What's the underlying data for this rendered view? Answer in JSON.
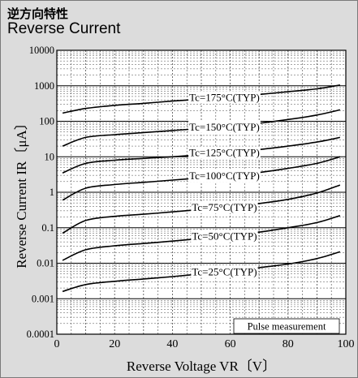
{
  "header": {
    "title_jp": "逆方向特性",
    "title_en": "Reverse Current"
  },
  "chart_data": {
    "type": "line",
    "title": "Reverse Current",
    "xlabel": "Reverse Voltage  VR〔V〕",
    "ylabel": "Reverse Current  IR〔μA〕",
    "xlim": [
      0,
      100
    ],
    "ylim": [
      0.0001,
      10000
    ],
    "yscale": "log",
    "grid": true,
    "x_ticks": [
      0,
      20,
      40,
      60,
      80,
      100
    ],
    "x_tick_labels": [
      "0",
      "20",
      "40",
      "60",
      "80",
      "100"
    ],
    "y_ticks": [
      0.0001,
      0.001,
      0.01,
      0.1,
      1,
      10,
      100,
      1000,
      10000
    ],
    "y_tick_labels": [
      "0.0001",
      "0.001",
      "0.01",
      "0.1",
      "1",
      "10",
      "100",
      "1000",
      "10000"
    ],
    "annotation": "Pulse measurement",
    "series": [
      {
        "name": "Tc=175°C(TYP)",
        "x": [
          2,
          10,
          20,
          30,
          40,
          50,
          60,
          70,
          80,
          90,
          98
        ],
        "y": [
          170,
          230,
          280,
          320,
          370,
          420,
          490,
          570,
          680,
          820,
          1050
        ]
      },
      {
        "name": "Tc=150°C(TYP)",
        "x": [
          2,
          10,
          20,
          30,
          40,
          50,
          60,
          70,
          80,
          90,
          98
        ],
        "y": [
          20,
          35,
          42,
          48,
          55,
          62,
          72,
          88,
          112,
          150,
          210
        ]
      },
      {
        "name": "Tc=125°C(TYP)",
        "x": [
          2,
          10,
          20,
          30,
          40,
          50,
          60,
          70,
          80,
          90,
          98
        ],
        "y": [
          3.5,
          6.5,
          8,
          9,
          10,
          11.5,
          13.5,
          16,
          20,
          26,
          35
        ]
      },
      {
        "name": "Tc=100°C(TYP)",
        "x": [
          2,
          10,
          20,
          30,
          40,
          50,
          60,
          70,
          80,
          90,
          98
        ],
        "y": [
          0.6,
          1.3,
          1.65,
          1.9,
          2.2,
          2.55,
          3.0,
          3.6,
          4.7,
          6.5,
          10
        ]
      },
      {
        "name": "Tc=75°C(TYP)",
        "x": [
          2,
          10,
          20,
          30,
          40,
          50,
          60,
          70,
          80,
          90,
          98
        ],
        "y": [
          0.07,
          0.16,
          0.21,
          0.24,
          0.28,
          0.33,
          0.39,
          0.48,
          0.63,
          0.95,
          1.6
        ]
      },
      {
        "name": "Tc=50°C(TYP)",
        "x": [
          2,
          10,
          20,
          30,
          40,
          50,
          60,
          70,
          80,
          90,
          98
        ],
        "y": [
          0.012,
          0.024,
          0.031,
          0.036,
          0.042,
          0.05,
          0.06,
          0.075,
          0.1,
          0.14,
          0.22
        ]
      },
      {
        "name": "Tc=25°C(TYP)",
        "x": [
          2,
          10,
          20,
          30,
          40,
          50,
          60,
          70,
          80,
          90,
          98
        ],
        "y": [
          0.0016,
          0.0025,
          0.0031,
          0.0036,
          0.0042,
          0.005,
          0.006,
          0.0075,
          0.0095,
          0.0135,
          0.021
        ]
      }
    ],
    "label_x": 58,
    "colors": {
      "line": "#000000",
      "grid": "#4a4a4a",
      "plot_bg": "#ffffff",
      "panel_bg": "#dcdcdc"
    }
  }
}
